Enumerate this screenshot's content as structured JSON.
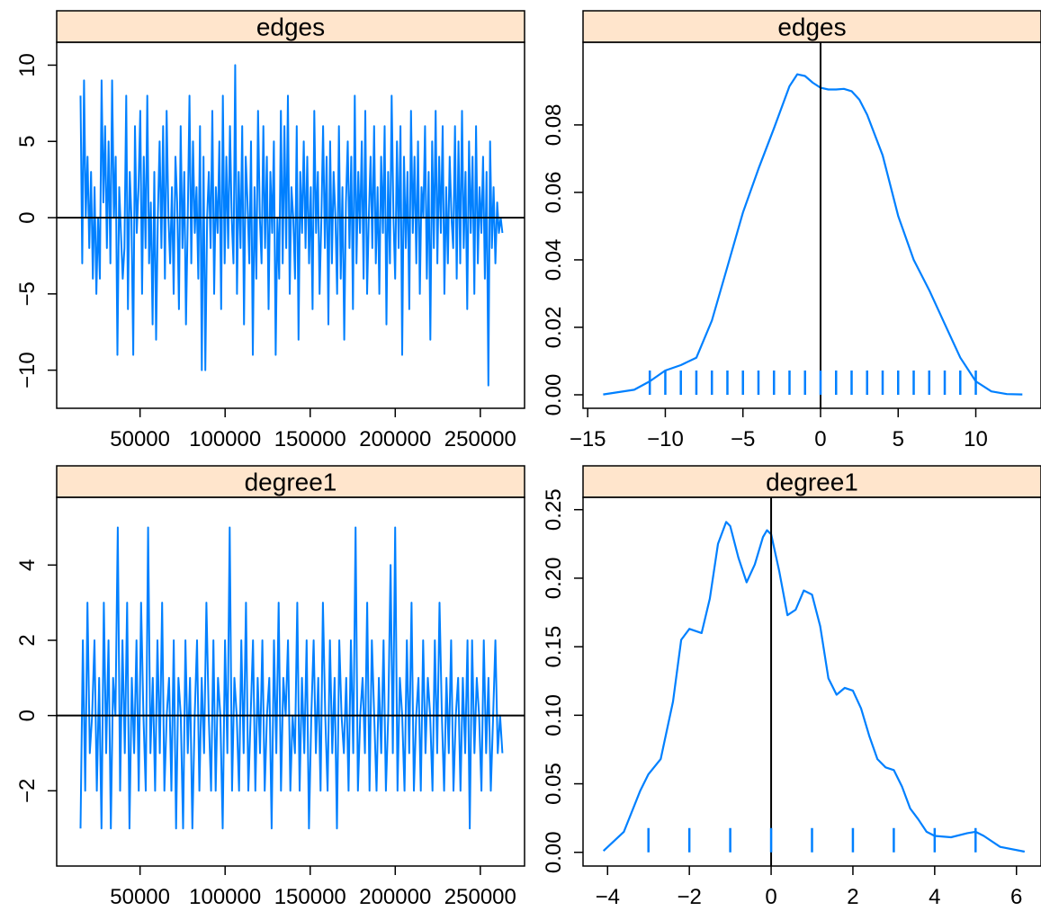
{
  "colors": {
    "series": "#0080ff",
    "strip": "#ffe5cc",
    "axis": "#000000"
  },
  "chart_data": [
    {
      "type": "line",
      "panel": "trace",
      "strip_title": "edges",
      "xlim": [
        1000,
        276000
      ],
      "ylim": [
        -12.5,
        11.5
      ],
      "x_ticks": [
        50000,
        100000,
        150000,
        200000,
        250000
      ],
      "x_tick_labels": [
        "50000",
        "100000",
        "150000",
        "200000",
        "250000"
      ],
      "y_ticks": [
        -10,
        -5,
        0,
        5,
        10
      ],
      "y_tick_labels": [
        "−10",
        "−5",
        "0",
        "5",
        "10"
      ],
      "reference_line_y": 0,
      "x_start": 15000,
      "x_end": 263000,
      "series": [
        {
          "values": [
            8,
            -3,
            9,
            0,
            4,
            -2,
            3,
            -4,
            2,
            -5,
            0,
            -4,
            9,
            1,
            6,
            -2,
            5,
            -3,
            9,
            0,
            4,
            -9,
            2,
            -1,
            -4,
            -2,
            8,
            -6,
            3,
            0,
            -9,
            6,
            -1,
            2,
            7,
            -5,
            4,
            -2,
            8,
            -3,
            1,
            -7,
            3,
            -8,
            0,
            5,
            -2,
            6,
            -4,
            7,
            0,
            -3,
            2,
            -5,
            4,
            1,
            -6,
            6,
            -2,
            3,
            -7,
            0,
            8,
            -3,
            5,
            -1,
            2,
            -4,
            6,
            -10,
            4,
            -10,
            0,
            3,
            -2,
            7,
            -5,
            2,
            -1,
            5,
            -6,
            8,
            -3,
            4,
            -2,
            6,
            0,
            -3,
            10,
            -5,
            3,
            -2,
            6,
            -7,
            4,
            1,
            -3,
            5,
            -9,
            2,
            -4,
            7,
            0,
            -3,
            6,
            -2,
            4,
            -6,
            3,
            -1,
            5,
            -9,
            0,
            -4,
            7,
            -3,
            6,
            -2,
            8,
            -5,
            2,
            0,
            -4,
            6,
            -8,
            3,
            -1,
            5,
            -2,
            4,
            -3,
            2,
            -6,
            7,
            -1,
            3,
            -5,
            0,
            6,
            -2,
            4,
            -7,
            5,
            -3,
            3,
            0,
            -5,
            6,
            -4,
            2,
            -8,
            1,
            5,
            -2,
            4,
            -6,
            8,
            -3,
            3,
            -1,
            5,
            -4,
            7,
            -5,
            0,
            4,
            -2,
            6,
            -3,
            2,
            -5,
            4,
            -1,
            6,
            -7,
            3,
            -3,
            8,
            0,
            -4,
            5,
            -2,
            6,
            -9,
            4,
            -2,
            3,
            -6,
            7,
            -1,
            4,
            -3,
            5,
            -5,
            2,
            0,
            6,
            -4,
            3,
            -8,
            5,
            -2,
            7,
            -3,
            4,
            -1,
            6,
            -5,
            2,
            -3,
            4,
            0,
            -2,
            6,
            -4,
            5,
            -3,
            7,
            -2,
            3,
            -6,
            5,
            -1,
            4,
            -5,
            6,
            -3,
            2,
            -1,
            4,
            -4,
            3,
            -11,
            5,
            -2,
            2,
            -3,
            1,
            -1,
            0,
            -1
          ]
        }
      ]
    },
    {
      "type": "area",
      "panel": "density",
      "strip_title": "edges",
      "xlim": [
        -15.3,
        14.2
      ],
      "ylim": [
        -0.004,
        0.1045
      ],
      "x_ticks": [
        -15,
        -10,
        -5,
        0,
        5,
        10
      ],
      "x_tick_labels": [
        "−15",
        "−10",
        "−5",
        "0",
        "5",
        "10"
      ],
      "y_ticks": [
        0,
        0.02,
        0.04,
        0.06,
        0.08
      ],
      "y_tick_labels": [
        "0.00",
        "0.02",
        "0.04",
        "0.06",
        "0.08"
      ],
      "reference_line_x": 0,
      "x": [
        -14,
        -12,
        -11,
        -10,
        -9,
        -8,
        -7,
        -6,
        -5,
        -4,
        -3,
        -2,
        -1.5,
        -1,
        -0.5,
        0,
        0.5,
        1,
        1.5,
        2,
        2.5,
        3,
        4,
        5,
        6,
        7,
        8,
        9,
        10,
        11,
        12,
        13
      ],
      "density": [
        0.0001,
        0.0015,
        0.004,
        0.0072,
        0.0088,
        0.011,
        0.022,
        0.038,
        0.054,
        0.067,
        0.079,
        0.0915,
        0.095,
        0.0945,
        0.0925,
        0.091,
        0.0905,
        0.0905,
        0.0907,
        0.09,
        0.0875,
        0.083,
        0.071,
        0.053,
        0.04,
        0.031,
        0.021,
        0.011,
        0.004,
        0.001,
        0.0002,
        0.0001
      ],
      "rug": [
        -11,
        -10,
        -9,
        -8,
        -7,
        -6,
        -5,
        -4,
        -3,
        -2,
        -1,
        0,
        1,
        2,
        3,
        4,
        5,
        6,
        7,
        8,
        9,
        10
      ]
    },
    {
      "type": "line",
      "panel": "trace",
      "strip_title": "degree1",
      "xlim": [
        1000,
        276000
      ],
      "ylim": [
        -4.0,
        5.8
      ],
      "x_ticks": [
        50000,
        100000,
        150000,
        200000,
        250000
      ],
      "x_tick_labels": [
        "50000",
        "100000",
        "150000",
        "200000",
        "250000"
      ],
      "y_ticks": [
        -2,
        0,
        2,
        4
      ],
      "y_tick_labels": [
        "−2",
        "0",
        "2",
        "4"
      ],
      "reference_line_y": 0,
      "x_start": 15000,
      "x_end": 263000,
      "series": [
        {
          "values": [
            -3,
            2,
            -2,
            3,
            -1,
            0,
            2,
            -2,
            1,
            -3,
            3,
            -1,
            2,
            -3,
            1,
            0,
            5,
            -2,
            2,
            -1,
            3,
            -3,
            1,
            -1,
            2,
            -2,
            3,
            0,
            -2,
            5,
            -1,
            1,
            -2,
            2,
            -1,
            3,
            -2,
            0,
            1,
            -2,
            2,
            -3,
            1,
            0,
            -3,
            2,
            -1,
            1,
            -3,
            0,
            2,
            -2,
            1,
            -1,
            3,
            0,
            -2,
            2,
            -2,
            1,
            0,
            -3,
            2,
            -1,
            5,
            -2,
            1,
            0,
            -2,
            2,
            -1,
            3,
            -2,
            0,
            2,
            -2,
            1,
            -1,
            2,
            -2,
            0,
            1,
            -3,
            2,
            -1,
            3,
            -2,
            1,
            0,
            2,
            -2,
            0,
            -1,
            3,
            -2,
            1,
            -1,
            2,
            -3,
            0,
            2,
            -1,
            1,
            -2,
            3,
            0,
            -2,
            2,
            -1,
            1,
            -3,
            2,
            0,
            -1,
            1,
            -2,
            2,
            -1,
            5,
            -2,
            0,
            1,
            -1,
            3,
            -2,
            2,
            0,
            -2,
            1,
            -1,
            2,
            -2,
            0,
            4,
            -1,
            5,
            -2,
            1,
            0,
            -2,
            2,
            -1,
            3,
            -2,
            0,
            1,
            -2,
            2,
            -1,
            1,
            0,
            -2,
            2,
            -1,
            3,
            0,
            -2,
            1,
            -1,
            2,
            -2,
            0,
            1,
            -2,
            1,
            -1,
            2,
            -3,
            2,
            -1,
            1,
            0,
            -2,
            2,
            -1,
            1,
            -2,
            0,
            2,
            -1,
            0,
            -1
          ]
        }
      ]
    },
    {
      "type": "area",
      "panel": "density",
      "strip_title": "degree1",
      "xlim": [
        -4.6,
        6.6
      ],
      "ylim": [
        -0.01,
        0.259
      ],
      "x_ticks": [
        -4,
        -2,
        0,
        2,
        4,
        6
      ],
      "x_tick_labels": [
        "−4",
        "−2",
        "0",
        "2",
        "4",
        "6"
      ],
      "y_ticks": [
        0,
        0.05,
        0.1,
        0.15,
        0.2,
        0.25
      ],
      "y_tick_labels": [
        "0.00",
        "0.05",
        "0.10",
        "0.15",
        "0.20",
        "0.25"
      ],
      "reference_line_x": 0,
      "x": [
        -4.1,
        -3.6,
        -3.2,
        -3,
        -2.7,
        -2.4,
        -2.2,
        -2,
        -1.7,
        -1.5,
        -1.3,
        -1.1,
        -1,
        -0.8,
        -0.6,
        -0.4,
        -0.2,
        -0.1,
        0,
        0.2,
        0.4,
        0.6,
        0.8,
        1,
        1.2,
        1.4,
        1.6,
        1.8,
        2,
        2.2,
        2.4,
        2.6,
        2.8,
        3,
        3.2,
        3.4,
        3.6,
        3.8,
        4,
        4.4,
        4.8,
        5,
        5.2,
        5.6,
        6.2
      ],
      "density": [
        0.001,
        0.015,
        0.045,
        0.057,
        0.068,
        0.11,
        0.155,
        0.163,
        0.16,
        0.185,
        0.225,
        0.241,
        0.238,
        0.215,
        0.197,
        0.21,
        0.23,
        0.235,
        0.232,
        0.205,
        0.173,
        0.177,
        0.191,
        0.188,
        0.165,
        0.127,
        0.115,
        0.12,
        0.118,
        0.105,
        0.085,
        0.068,
        0.062,
        0.06,
        0.048,
        0.032,
        0.024,
        0.015,
        0.012,
        0.011,
        0.014,
        0.015,
        0.012,
        0.004,
        0.0005
      ],
      "rug": [
        -3,
        -2,
        -1,
        0,
        1,
        2,
        3,
        4,
        5
      ]
    }
  ]
}
